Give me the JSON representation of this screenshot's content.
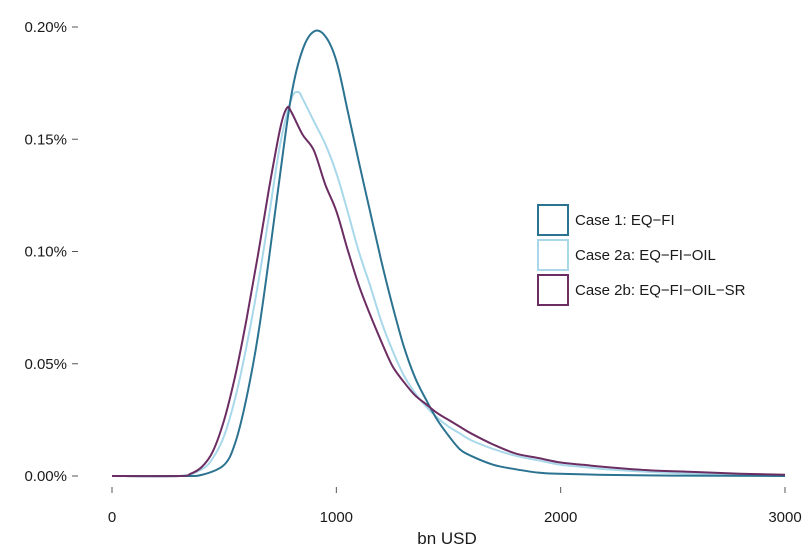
{
  "chart_data": {
    "type": "line",
    "title": "",
    "xlabel": "bn USD",
    "ylabel": "",
    "xlim": [
      0,
      3000
    ],
    "ylim": [
      0,
      0.2
    ],
    "x_ticks": [
      0,
      1000,
      2000,
      3000
    ],
    "x_tick_labels": [
      "0",
      "1000",
      "2000",
      "3000"
    ],
    "y_ticks": [
      0,
      0.05,
      0.1,
      0.15,
      0.2
    ],
    "y_tick_labels": [
      "0.00%",
      "0.05%",
      "0.10%",
      "0.15%",
      "0.20%"
    ],
    "y_unit": "percent",
    "grid": false,
    "legend_position": "right",
    "series": [
      {
        "name": "Case 1: EQ−FI",
        "color": "#2b7391",
        "points": [
          [
            0,
            0
          ],
          [
            300,
            0
          ],
          [
            400,
            0.0005
          ],
          [
            500,
            0.005
          ],
          [
            550,
            0.015
          ],
          [
            600,
            0.035
          ],
          [
            650,
            0.062
          ],
          [
            700,
            0.097
          ],
          [
            750,
            0.135
          ],
          [
            800,
            0.17
          ],
          [
            850,
            0.19
          ],
          [
            900,
            0.198
          ],
          [
            950,
            0.196
          ],
          [
            1000,
            0.185
          ],
          [
            1050,
            0.163
          ],
          [
            1100,
            0.14
          ],
          [
            1150,
            0.118
          ],
          [
            1200,
            0.096
          ],
          [
            1250,
            0.076
          ],
          [
            1300,
            0.058
          ],
          [
            1350,
            0.044
          ],
          [
            1400,
            0.034
          ],
          [
            1450,
            0.025
          ],
          [
            1500,
            0.018
          ],
          [
            1550,
            0.012
          ],
          [
            1600,
            0.009
          ],
          [
            1700,
            0.005
          ],
          [
            1800,
            0.003
          ],
          [
            1900,
            0.0015
          ],
          [
            2000,
            0.001
          ],
          [
            2200,
            0.0005
          ],
          [
            2500,
            0.0002
          ],
          [
            3000,
            0
          ]
        ]
      },
      {
        "name": "Case 2a: EQ−FI−OIL",
        "color": "#a8d8ea",
        "points": [
          [
            0,
            0
          ],
          [
            300,
            0
          ],
          [
            400,
            0.003
          ],
          [
            450,
            0.008
          ],
          [
            500,
            0.018
          ],
          [
            550,
            0.035
          ],
          [
            600,
            0.058
          ],
          [
            650,
            0.085
          ],
          [
            700,
            0.116
          ],
          [
            750,
            0.148
          ],
          [
            800,
            0.168
          ],
          [
            830,
            0.171
          ],
          [
            850,
            0.168
          ],
          [
            900,
            0.158
          ],
          [
            950,
            0.148
          ],
          [
            1000,
            0.135
          ],
          [
            1050,
            0.118
          ],
          [
            1100,
            0.1
          ],
          [
            1150,
            0.085
          ],
          [
            1200,
            0.069
          ],
          [
            1250,
            0.056
          ],
          [
            1300,
            0.045
          ],
          [
            1350,
            0.037
          ],
          [
            1400,
            0.031
          ],
          [
            1450,
            0.026
          ],
          [
            1500,
            0.022
          ],
          [
            1550,
            0.019
          ],
          [
            1600,
            0.016
          ],
          [
            1700,
            0.012
          ],
          [
            1800,
            0.009
          ],
          [
            1900,
            0.007
          ],
          [
            2000,
            0.005
          ],
          [
            2100,
            0.004
          ],
          [
            2200,
            0.003
          ],
          [
            2400,
            0.0018
          ],
          [
            2600,
            0.001
          ],
          [
            2800,
            0.0005
          ],
          [
            3000,
            0.0002
          ]
        ]
      },
      {
        "name": "Case 2b: EQ−FI−OIL−SR",
        "color": "#6b2d62",
        "points": [
          [
            0,
            0
          ],
          [
            300,
            0
          ],
          [
            350,
            0.001
          ],
          [
            400,
            0.004
          ],
          [
            450,
            0.011
          ],
          [
            500,
            0.025
          ],
          [
            550,
            0.045
          ],
          [
            600,
            0.07
          ],
          [
            650,
            0.098
          ],
          [
            700,
            0.128
          ],
          [
            750,
            0.155
          ],
          [
            780,
            0.164
          ],
          [
            800,
            0.162
          ],
          [
            850,
            0.152
          ],
          [
            900,
            0.145
          ],
          [
            950,
            0.13
          ],
          [
            1000,
            0.118
          ],
          [
            1050,
            0.101
          ],
          [
            1100,
            0.085
          ],
          [
            1150,
            0.072
          ],
          [
            1200,
            0.06
          ],
          [
            1250,
            0.049
          ],
          [
            1300,
            0.042
          ],
          [
            1350,
            0.036
          ],
          [
            1400,
            0.032
          ],
          [
            1450,
            0.028
          ],
          [
            1500,
            0.025
          ],
          [
            1550,
            0.022
          ],
          [
            1600,
            0.019
          ],
          [
            1700,
            0.014
          ],
          [
            1800,
            0.01
          ],
          [
            1900,
            0.008
          ],
          [
            2000,
            0.006
          ],
          [
            2100,
            0.005
          ],
          [
            2200,
            0.004
          ],
          [
            2400,
            0.0025
          ],
          [
            2600,
            0.0018
          ],
          [
            2800,
            0.001
          ],
          [
            3000,
            0.0006
          ]
        ]
      }
    ]
  }
}
